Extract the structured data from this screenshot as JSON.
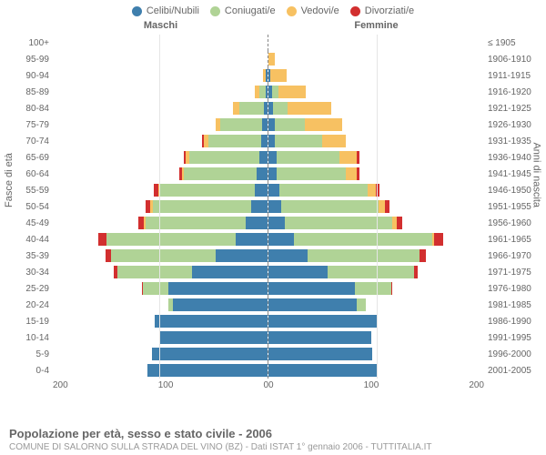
{
  "type": "population-pyramid-stacked",
  "legend": [
    {
      "label": "Celibi/Nubili",
      "color": "#3f7fad"
    },
    {
      "label": "Coniugati/e",
      "color": "#b0d396"
    },
    {
      "label": "Vedovi/e",
      "color": "#f7c162"
    },
    {
      "label": "Divorziati/e",
      "color": "#d22f2f"
    }
  ],
  "gender": {
    "male": "Maschi",
    "female": "Femmine"
  },
  "y_left_title": "Fasce di età",
  "y_right_title": "Anni di nascita",
  "x_max": 200,
  "x_ticks_left": [
    "200",
    "100",
    "0"
  ],
  "x_ticks_right": [
    "0",
    "100",
    "200"
  ],
  "segment_colors": [
    "#3f7fad",
    "#b0d396",
    "#f7c162",
    "#d22f2f"
  ],
  "bar_outline": "#ffffff",
  "grid_color": "#e5e5e5",
  "zero_line": "#888888",
  "background": "#ffffff",
  "label_fontsize": 10,
  "tick_fontsize": 10,
  "title": "Popolazione per età, sesso e stato civile - 2006",
  "subtitle": "COMUNE DI SALORNO SULLA STRADA DEL VINO (BZ) - Dati ISTAT 1° gennaio 2006 - TUTTITALIA.IT",
  "rows": [
    {
      "age": "100+",
      "birth": "≤ 1905",
      "m": [
        0,
        0,
        0,
        0
      ],
      "f": [
        0,
        0,
        0,
        0
      ]
    },
    {
      "age": "95-99",
      "birth": "1906-1910",
      "m": [
        0,
        0,
        0,
        0
      ],
      "f": [
        0,
        0,
        6,
        0
      ]
    },
    {
      "age": "90-94",
      "birth": "1911-1915",
      "m": [
        2,
        0,
        2,
        0
      ],
      "f": [
        2,
        0,
        15,
        0
      ]
    },
    {
      "age": "85-89",
      "birth": "1916-1920",
      "m": [
        2,
        6,
        4,
        0
      ],
      "f": [
        3,
        6,
        26,
        0
      ]
    },
    {
      "age": "80-84",
      "birth": "1921-1925",
      "m": [
        3,
        23,
        6,
        0
      ],
      "f": [
        4,
        14,
        40,
        0
      ]
    },
    {
      "age": "75-79",
      "birth": "1926-1930",
      "m": [
        5,
        39,
        4,
        0
      ],
      "f": [
        6,
        28,
        34,
        0
      ]
    },
    {
      "age": "70-74",
      "birth": "1931-1935",
      "m": [
        6,
        49,
        4,
        2
      ],
      "f": [
        6,
        44,
        22,
        0
      ]
    },
    {
      "age": "65-69",
      "birth": "1936-1940",
      "m": [
        8,
        65,
        3,
        2
      ],
      "f": [
        8,
        58,
        16,
        2
      ]
    },
    {
      "age": "60-64",
      "birth": "1941-1945",
      "m": [
        10,
        68,
        2,
        2
      ],
      "f": [
        8,
        64,
        10,
        2
      ]
    },
    {
      "age": "55-59",
      "birth": "1946-1950",
      "m": [
        12,
        88,
        2,
        4
      ],
      "f": [
        10,
        82,
        8,
        3
      ]
    },
    {
      "age": "50-54",
      "birth": "1951-1955",
      "m": [
        15,
        92,
        2,
        5
      ],
      "f": [
        12,
        90,
        6,
        4
      ]
    },
    {
      "age": "45-49",
      "birth": "1956-1960",
      "m": [
        20,
        94,
        1,
        5
      ],
      "f": [
        15,
        100,
        4,
        5
      ]
    },
    {
      "age": "40-44",
      "birth": "1961-1965",
      "m": [
        30,
        120,
        0,
        8
      ],
      "f": [
        24,
        128,
        2,
        8
      ]
    },
    {
      "age": "35-39",
      "birth": "1966-1970",
      "m": [
        48,
        98,
        0,
        5
      ],
      "f": [
        36,
        104,
        0,
        6
      ]
    },
    {
      "age": "30-34",
      "birth": "1971-1975",
      "m": [
        70,
        70,
        0,
        3
      ],
      "f": [
        55,
        80,
        0,
        3
      ]
    },
    {
      "age": "25-29",
      "birth": "1976-1980",
      "m": [
        92,
        24,
        0,
        1
      ],
      "f": [
        80,
        34,
        0,
        1
      ]
    },
    {
      "age": "20-24",
      "birth": "1981-1985",
      "m": [
        88,
        4,
        0,
        0
      ],
      "f": [
        82,
        8,
        0,
        0
      ]
    },
    {
      "age": "15-19",
      "birth": "1986-1990",
      "m": [
        105,
        0,
        0,
        0
      ],
      "f": [
        100,
        0,
        0,
        0
      ]
    },
    {
      "age": "10-14",
      "birth": "1991-1995",
      "m": [
        100,
        0,
        0,
        0
      ],
      "f": [
        95,
        0,
        0,
        0
      ]
    },
    {
      "age": "5-9",
      "birth": "1996-2000",
      "m": [
        108,
        0,
        0,
        0
      ],
      "f": [
        96,
        0,
        0,
        0
      ]
    },
    {
      "age": "0-4",
      "birth": "2001-2005",
      "m": [
        112,
        0,
        0,
        0
      ],
      "f": [
        100,
        0,
        0,
        0
      ]
    }
  ]
}
